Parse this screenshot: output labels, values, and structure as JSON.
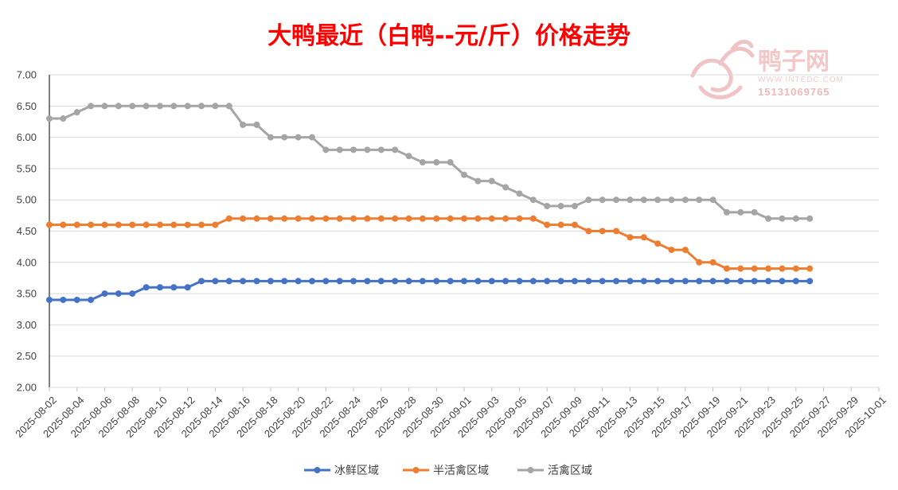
{
  "chart_data": {
    "type": "line",
    "title": "大鸭最近（白鸭--元/斤）价格走势",
    "xlabel": "",
    "ylabel": "",
    "ylim": [
      2.0,
      7.0
    ],
    "y_tick_labels": [
      "7.00",
      "6.50",
      "6.00",
      "5.50",
      "5.00",
      "4.50",
      "4.00",
      "3.50",
      "3.00",
      "2.50",
      "2.00"
    ],
    "x_range": [
      "2025-08-02",
      "2025-10-01"
    ],
    "x_tick_labels": [
      "2025-08-02",
      "2025-08-04",
      "2025-08-06",
      "2025-08-08",
      "2025-08-10",
      "2025-08-12",
      "2025-08-14",
      "2025-08-16",
      "2025-08-18",
      "2025-08-20",
      "2025-08-22",
      "2025-08-24",
      "2025-08-26",
      "2025-08-28",
      "2025-08-30",
      "2025-09-01",
      "2025-09-03",
      "2025-09-05",
      "2025-09-07",
      "2025-09-09",
      "2025-09-11",
      "2025-09-13",
      "2025-09-15",
      "2025-09-17",
      "2025-09-19",
      "2025-09-21",
      "2025-09-23",
      "2025-09-25",
      "2025-09-27",
      "2025-09-29",
      "2025-10-01"
    ],
    "grid": true,
    "legend_position": "bottom",
    "x": [
      "2025-08-02",
      "2025-08-03",
      "2025-08-04",
      "2025-08-05",
      "2025-08-06",
      "2025-08-07",
      "2025-08-08",
      "2025-08-09",
      "2025-08-10",
      "2025-08-11",
      "2025-08-12",
      "2025-08-13",
      "2025-08-14",
      "2025-08-15",
      "2025-08-16",
      "2025-08-17",
      "2025-08-18",
      "2025-08-19",
      "2025-08-20",
      "2025-08-21",
      "2025-08-22",
      "2025-08-23",
      "2025-08-24",
      "2025-08-25",
      "2025-08-26",
      "2025-08-27",
      "2025-08-28",
      "2025-08-29",
      "2025-08-30",
      "2025-08-31",
      "2025-09-01",
      "2025-09-02",
      "2025-09-03",
      "2025-09-04",
      "2025-09-05",
      "2025-09-06",
      "2025-09-07",
      "2025-09-08",
      "2025-09-09",
      "2025-09-10",
      "2025-09-11",
      "2025-09-12",
      "2025-09-13",
      "2025-09-14",
      "2025-09-15",
      "2025-09-16",
      "2025-09-17",
      "2025-09-18",
      "2025-09-19",
      "2025-09-20",
      "2025-09-21",
      "2025-09-22",
      "2025-09-23",
      "2025-09-24",
      "2025-09-25",
      "2025-09-26"
    ],
    "series": [
      {
        "name": "冰鲜区域",
        "color": "#4472c4",
        "values": [
          3.4,
          3.4,
          3.4,
          3.4,
          3.5,
          3.5,
          3.5,
          3.6,
          3.6,
          3.6,
          3.6,
          3.7,
          3.7,
          3.7,
          3.7,
          3.7,
          3.7,
          3.7,
          3.7,
          3.7,
          3.7,
          3.7,
          3.7,
          3.7,
          3.7,
          3.7,
          3.7,
          3.7,
          3.7,
          3.7,
          3.7,
          3.7,
          3.7,
          3.7,
          3.7,
          3.7,
          3.7,
          3.7,
          3.7,
          3.7,
          3.7,
          3.7,
          3.7,
          3.7,
          3.7,
          3.7,
          3.7,
          3.7,
          3.7,
          3.7,
          3.7,
          3.7,
          3.7,
          3.7,
          3.7,
          3.7
        ]
      },
      {
        "name": "半活禽区域",
        "color": "#ed7d31",
        "values": [
          4.6,
          4.6,
          4.6,
          4.6,
          4.6,
          4.6,
          4.6,
          4.6,
          4.6,
          4.6,
          4.6,
          4.6,
          4.6,
          4.7,
          4.7,
          4.7,
          4.7,
          4.7,
          4.7,
          4.7,
          4.7,
          4.7,
          4.7,
          4.7,
          4.7,
          4.7,
          4.7,
          4.7,
          4.7,
          4.7,
          4.7,
          4.7,
          4.7,
          4.7,
          4.7,
          4.7,
          4.6,
          4.6,
          4.6,
          4.5,
          4.5,
          4.5,
          4.4,
          4.4,
          4.3,
          4.2,
          4.2,
          4.0,
          4.0,
          3.9,
          3.9,
          3.9,
          3.9,
          3.9,
          3.9,
          3.9
        ]
      },
      {
        "name": "活禽区域",
        "color": "#a5a5a5",
        "values": [
          6.3,
          6.3,
          6.4,
          6.5,
          6.5,
          6.5,
          6.5,
          6.5,
          6.5,
          6.5,
          6.5,
          6.5,
          6.5,
          6.5,
          6.2,
          6.2,
          6.0,
          6.0,
          6.0,
          6.0,
          5.8,
          5.8,
          5.8,
          5.8,
          5.8,
          5.8,
          5.7,
          5.6,
          5.6,
          5.6,
          5.4,
          5.3,
          5.3,
          5.2,
          5.1,
          5.0,
          4.9,
          4.9,
          4.9,
          5.0,
          5.0,
          5.0,
          5.0,
          5.0,
          5.0,
          5.0,
          5.0,
          5.0,
          5.0,
          4.8,
          4.8,
          4.8,
          4.7,
          4.7,
          4.7,
          4.7
        ]
      }
    ]
  },
  "watermark": {
    "brand": "鸭子网",
    "site": "WWW.INTEDC.COM",
    "phone": "15131069765"
  }
}
